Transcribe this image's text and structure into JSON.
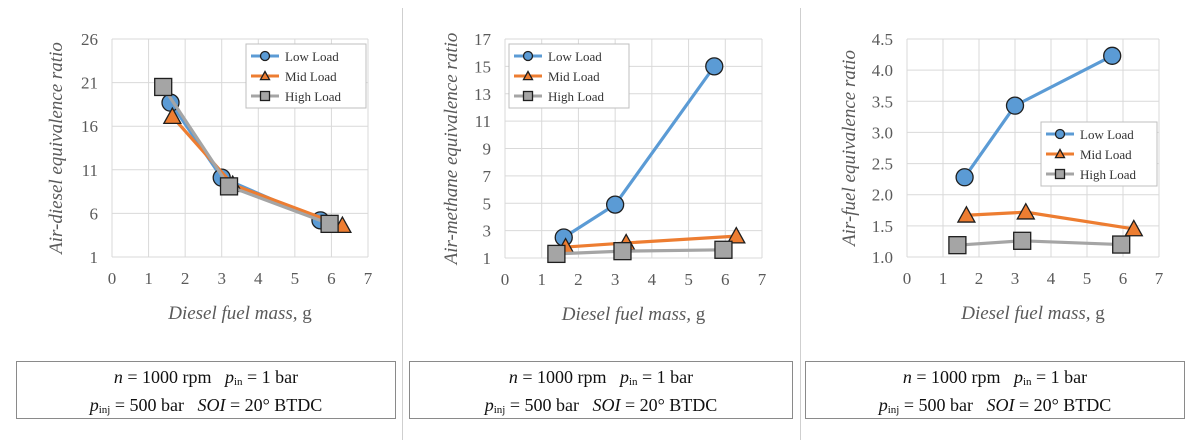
{
  "colors": {
    "low": "#5b9bd5",
    "mid": "#ed7d31",
    "high": "#a5a5a5",
    "grid": "#d9d9d9"
  },
  "legend": {
    "low": "Low Load",
    "mid": "Mid Load",
    "high": "High Load"
  },
  "conditions": {
    "n_symbol": "n",
    "n_value": "= 1000 rpm",
    "pin_symbol": "p",
    "pin_sub": "in",
    "pin_value": "= 1 bar",
    "pinj_symbol": "p",
    "pinj_sub": "inj",
    "pinj_value": "= 500 bar",
    "soi_symbol": "SOI",
    "soi_value": "= 20° BTDC"
  },
  "chart_data": [
    {
      "type": "line",
      "xlabel": "Diesel fuel mass, g",
      "ylabel": "Air-diesel equivalence ratio",
      "xlim": [
        0,
        7
      ],
      "ylim": [
        1,
        26
      ],
      "xticks": [
        "0",
        "1",
        "2",
        "3",
        "4",
        "5",
        "6",
        "7"
      ],
      "yticks": [
        "1",
        "6",
        "11",
        "16",
        "21",
        "26"
      ],
      "legend_position": "top-right",
      "series": [
        {
          "name": "Low Load",
          "x": [
            1.6,
            3.0,
            5.7
          ],
          "y": [
            18.7,
            10.1,
            5.2
          ]
        },
        {
          "name": "Mid Load",
          "x": [
            1.65,
            3.3,
            6.3
          ],
          "y": [
            17.1,
            9.3,
            4.6
          ]
        },
        {
          "name": "High Load",
          "x": [
            1.4,
            3.2,
            5.95
          ],
          "y": [
            20.5,
            9.1,
            4.8
          ]
        }
      ]
    },
    {
      "type": "line",
      "xlabel": "Diesel fuel mass, g",
      "ylabel": "Air-methane equivalence ratio",
      "xlim": [
        0,
        7
      ],
      "ylim": [
        1,
        17
      ],
      "xticks": [
        "0",
        "1",
        "2",
        "3",
        "4",
        "5",
        "6",
        "7"
      ],
      "yticks": [
        "1",
        "3",
        "5",
        "7",
        "9",
        "11",
        "13",
        "15",
        "17"
      ],
      "legend_position": "top-left",
      "series": [
        {
          "name": "Low Load",
          "x": [
            1.6,
            3.0,
            5.7
          ],
          "y": [
            2.5,
            4.9,
            15.0
          ]
        },
        {
          "name": "Mid Load",
          "x": [
            1.65,
            3.3,
            6.3
          ],
          "y": [
            1.8,
            2.1,
            2.6
          ]
        },
        {
          "name": "High Load",
          "x": [
            1.4,
            3.2,
            5.95
          ],
          "y": [
            1.3,
            1.5,
            1.6
          ]
        }
      ]
    },
    {
      "type": "line",
      "xlabel": "Diesel fuel mass, g",
      "ylabel": "Air-fuel equivalence ratio",
      "xlim": [
        0,
        7
      ],
      "ylim": [
        1.0,
        4.5
      ],
      "xticks": [
        "0",
        "1",
        "2",
        "3",
        "4",
        "5",
        "6",
        "7"
      ],
      "yticks": [
        "1.0",
        "1.5",
        "2.0",
        "2.5",
        "3.0",
        "3.5",
        "4.0",
        "4.5"
      ],
      "legend_position": "middle-right",
      "series": [
        {
          "name": "Low Load",
          "x": [
            1.6,
            3.0,
            5.7
          ],
          "y": [
            2.28,
            3.43,
            4.23
          ]
        },
        {
          "name": "Mid Load",
          "x": [
            1.65,
            3.3,
            6.3
          ],
          "y": [
            1.67,
            1.72,
            1.45
          ]
        },
        {
          "name": "High Load",
          "x": [
            1.4,
            3.2,
            5.95
          ],
          "y": [
            1.19,
            1.26,
            1.2
          ]
        }
      ]
    }
  ]
}
